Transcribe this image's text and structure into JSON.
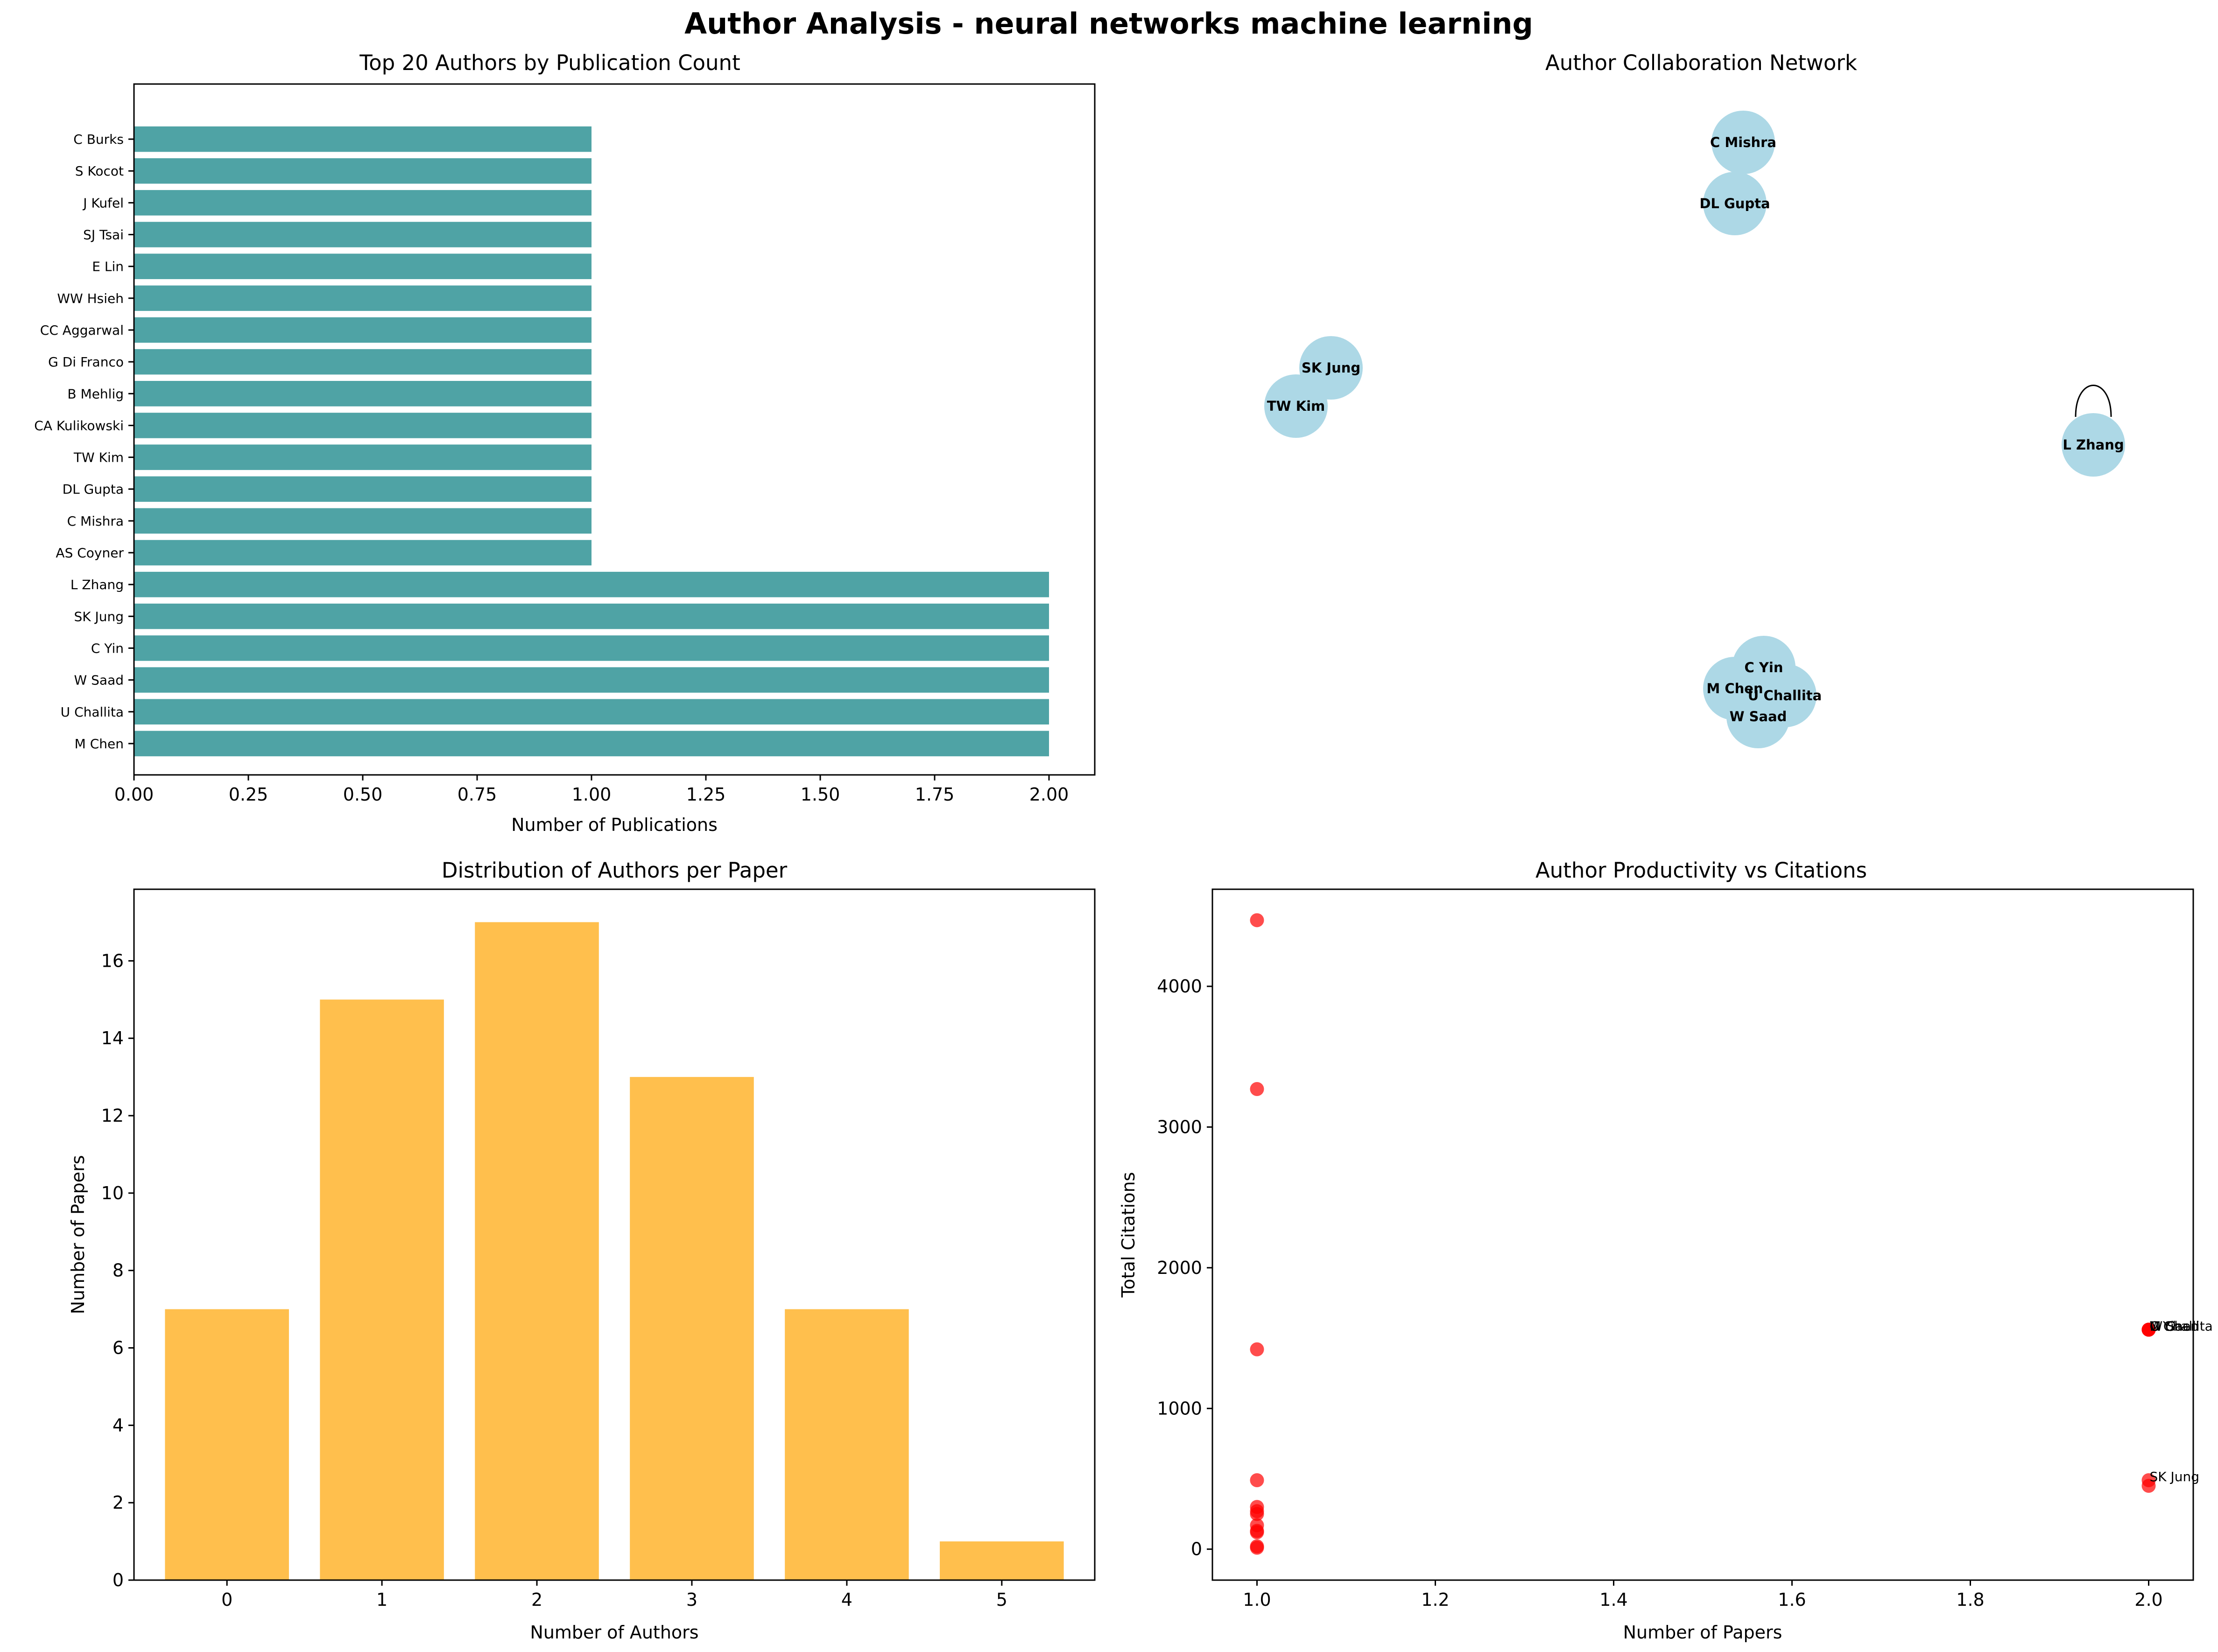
{
  "figure": {
    "title": "Author Analysis - neural networks machine learning"
  },
  "chart_data": [
    {
      "type": "bar",
      "orientation": "horizontal",
      "title": "Top 20 Authors by Publication Count",
      "xlabel": "Number of Publications",
      "ylabel": "",
      "categories": [
        "M Chen",
        "U Challita",
        "W Saad",
        "C Yin",
        "SK Jung",
        "L Zhang",
        "AS Coyner",
        "C Mishra",
        "DL Gupta",
        "TW Kim",
        "CA Kulikowski",
        "B Mehlig",
        "G Di Franco",
        "CC Aggarwal",
        "WW Hsieh",
        "E Lin",
        "SJ Tsai",
        "J Kufel",
        "S Kocot",
        "C Burks"
      ],
      "values": [
        2,
        2,
        2,
        2,
        2,
        2,
        1,
        1,
        1,
        1,
        1,
        1,
        1,
        1,
        1,
        1,
        1,
        1,
        1,
        1
      ],
      "xlim": [
        0,
        2.1
      ],
      "xticks": [
        "0.00",
        "0.25",
        "0.50",
        "0.75",
        "1.00",
        "1.25",
        "1.50",
        "1.75",
        "2.00"
      ],
      "color": "#4fa3a5"
    },
    {
      "type": "network",
      "title": "Author Collaboration Network",
      "nodes": [
        "C Mishra",
        "DL Gupta",
        "SK Jung",
        "TW Kim",
        "L Zhang",
        "C Yin",
        "M Chen",
        "U Challita",
        "W Saad"
      ],
      "edges": [
        [
          "C Mishra",
          "DL Gupta"
        ],
        [
          "SK Jung",
          "TW Kim"
        ],
        [
          "L Zhang",
          "L Zhang"
        ],
        [
          "C Yin",
          "M Chen"
        ],
        [
          "C Yin",
          "U Challita"
        ],
        [
          "C Yin",
          "W Saad"
        ],
        [
          "M Chen",
          "U Challita"
        ],
        [
          "M Chen",
          "W Saad"
        ],
        [
          "U Challita",
          "W Saad"
        ]
      ],
      "node_color": "#add8e6"
    },
    {
      "type": "bar",
      "title": "Distribution of Authors per Paper",
      "xlabel": "Number of Authors",
      "ylabel": "Number of Papers",
      "categories": [
        "0",
        "1",
        "2",
        "3",
        "4",
        "5"
      ],
      "values": [
        7,
        15,
        17,
        13,
        7,
        1
      ],
      "ylim": [
        0,
        17.85
      ],
      "yticks": [
        "0",
        "2",
        "4",
        "6",
        "8",
        "10",
        "12",
        "14",
        "16"
      ],
      "color": "#ffbf4d"
    },
    {
      "type": "scatter",
      "title": "Author Productivity vs Citations",
      "xlabel": "Number of Papers",
      "ylabel": "Total Citations",
      "points": [
        {
          "x": 1,
          "y": 4470
        },
        {
          "x": 1,
          "y": 3270
        },
        {
          "x": 1,
          "y": 1420
        },
        {
          "x": 1,
          "y": 490
        },
        {
          "x": 1,
          "y": 300
        },
        {
          "x": 1,
          "y": 270
        },
        {
          "x": 1,
          "y": 250
        },
        {
          "x": 1,
          "y": 170
        },
        {
          "x": 1,
          "y": 130
        },
        {
          "x": 1,
          "y": 120
        },
        {
          "x": 1,
          "y": 20
        },
        {
          "x": 1,
          "y": 10
        },
        {
          "x": 2,
          "y": 1560
        },
        {
          "x": 2,
          "y": 1560
        },
        {
          "x": 2,
          "y": 1560
        },
        {
          "x": 2,
          "y": 1560
        },
        {
          "x": 2,
          "y": 490
        },
        {
          "x": 2,
          "y": 450
        }
      ],
      "annotations": [
        {
          "text": "M Chen",
          "x": 2,
          "y": 1560
        },
        {
          "text": "U Challita",
          "x": 2,
          "y": 1560
        },
        {
          "text": "W Saad",
          "x": 2,
          "y": 1560
        },
        {
          "text": "C Yin",
          "x": 2,
          "y": 1560
        },
        {
          "text": "SK Jung",
          "x": 2,
          "y": 490
        }
      ],
      "xlim": [
        0.95,
        2.05
      ],
      "ylim": [
        -220,
        4690
      ],
      "xticks": [
        "1.0",
        "1.2",
        "1.4",
        "1.6",
        "1.8",
        "2.0"
      ],
      "yticks": [
        "0",
        "1000",
        "2000",
        "3000",
        "4000"
      ],
      "color": "#ff0000"
    }
  ]
}
